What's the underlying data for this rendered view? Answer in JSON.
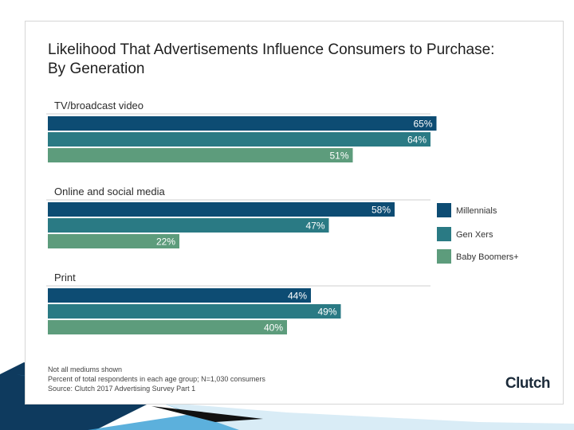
{
  "header": {
    "title_line1": "Likelihood That Advertisements Influence Consumers to Purchase:",
    "title_line2": "By Generation"
  },
  "footer": {
    "note1": "Not all mediums shown",
    "note2": "Percent of total respondents in each age group; N=1,030 consumers",
    "note3": "Source: Clutch 2017 Advertising Survey Part 1",
    "logo": "Clutch"
  },
  "colors": {
    "millennials": "#0d4c73",
    "gen_xers": "#2a7a84",
    "baby_boomers": "#5d9c7c",
    "slide_accent_dark": "#0e3a5e",
    "slide_accent_light": "#3fa2d6"
  },
  "chart_data": {
    "type": "bar",
    "orientation": "horizontal",
    "title": "Likelihood That Advertisements Influence Consumers to Purchase: By Generation",
    "categories": [
      "TV/broadcast video",
      "Online and social media",
      "Print"
    ],
    "series": [
      {
        "name": "Millennials",
        "values": [
          65,
          58,
          44
        ],
        "labels": [
          "65%",
          "58%",
          "44%"
        ]
      },
      {
        "name": "Gen Xers",
        "values": [
          64,
          47,
          49
        ],
        "labels": [
          "64%",
          "47%",
          "49%"
        ]
      },
      {
        "name": "Baby Boomers+",
        "values": [
          51,
          22,
          40
        ],
        "labels": [
          "51%",
          "22%",
          "40%"
        ]
      }
    ],
    "xlim": [
      0,
      100
    ],
    "unit": "%",
    "legend": "right",
    "grid": false
  }
}
